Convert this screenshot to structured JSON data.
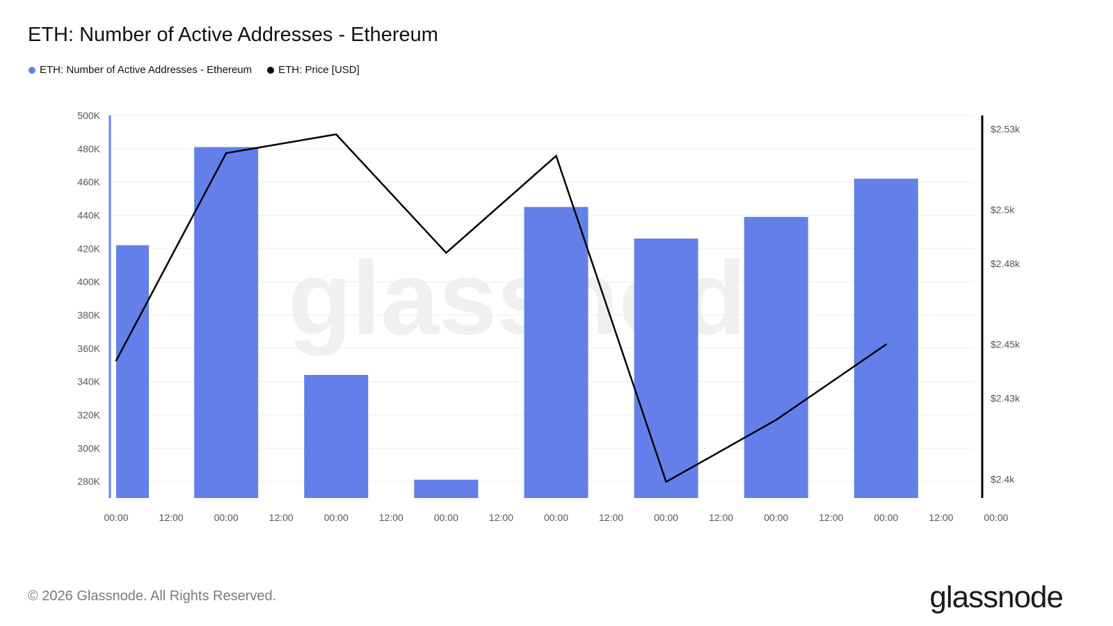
{
  "title": "ETH: Number of Active Addresses - Ethereum",
  "legend": [
    {
      "label": "ETH: Number of Active Addresses - Ethereum",
      "color": "#6380ea"
    },
    {
      "label": "ETH: Price [USD]",
      "color": "#000000"
    }
  ],
  "footer": {
    "copyright": "© 2026 Glassnode. All Rights Reserved.",
    "logo": "glassnode"
  },
  "watermark": "glassnode",
  "chart_data": {
    "type": "bar",
    "x_tick_labels": [
      "00:00",
      "12:00",
      "00:00",
      "12:00",
      "00:00",
      "12:00",
      "00:00",
      "12:00",
      "00:00",
      "12:00",
      "00:00",
      "12:00",
      "00:00",
      "12:00",
      "00:00",
      "12:00",
      "00:00"
    ],
    "y_left_ticks": [
      "500K",
      "480K",
      "460K",
      "440K",
      "420K",
      "400K",
      "380K",
      "360K",
      "340K",
      "320K",
      "300K",
      "280K"
    ],
    "y_left_range": [
      270000,
      500000
    ],
    "y_right_ticks": [
      {
        "label": "$2.53k",
        "value": 2530
      },
      {
        "label": "$2.5k",
        "value": 2500
      },
      {
        "label": "$2.48k",
        "value": 2480
      },
      {
        "label": "$2.45k",
        "value": 2450
      },
      {
        "label": "$2.43k",
        "value": 2430
      },
      {
        "label": "$2.4k",
        "value": 2400
      }
    ],
    "y_right_range": [
      2393,
      2535
    ],
    "series": [
      {
        "name": "ETH: Number of Active Addresses - Ethereum",
        "type": "bar",
        "color": "#6380ea",
        "x_index": [
          0,
          2,
          4,
          6,
          8,
          10,
          12,
          14
        ],
        "values": [
          422000,
          481000,
          344000,
          281000,
          445000,
          426000,
          439000,
          462000
        ]
      },
      {
        "name": "ETH: Price [USD]",
        "type": "line",
        "color": "#000000",
        "x_index": [
          0,
          2,
          4,
          6,
          8,
          10,
          12,
          14
        ],
        "values": [
          2444,
          2521,
          2528,
          2484,
          2520,
          2399,
          2422,
          2450
        ]
      }
    ],
    "grid": true
  }
}
